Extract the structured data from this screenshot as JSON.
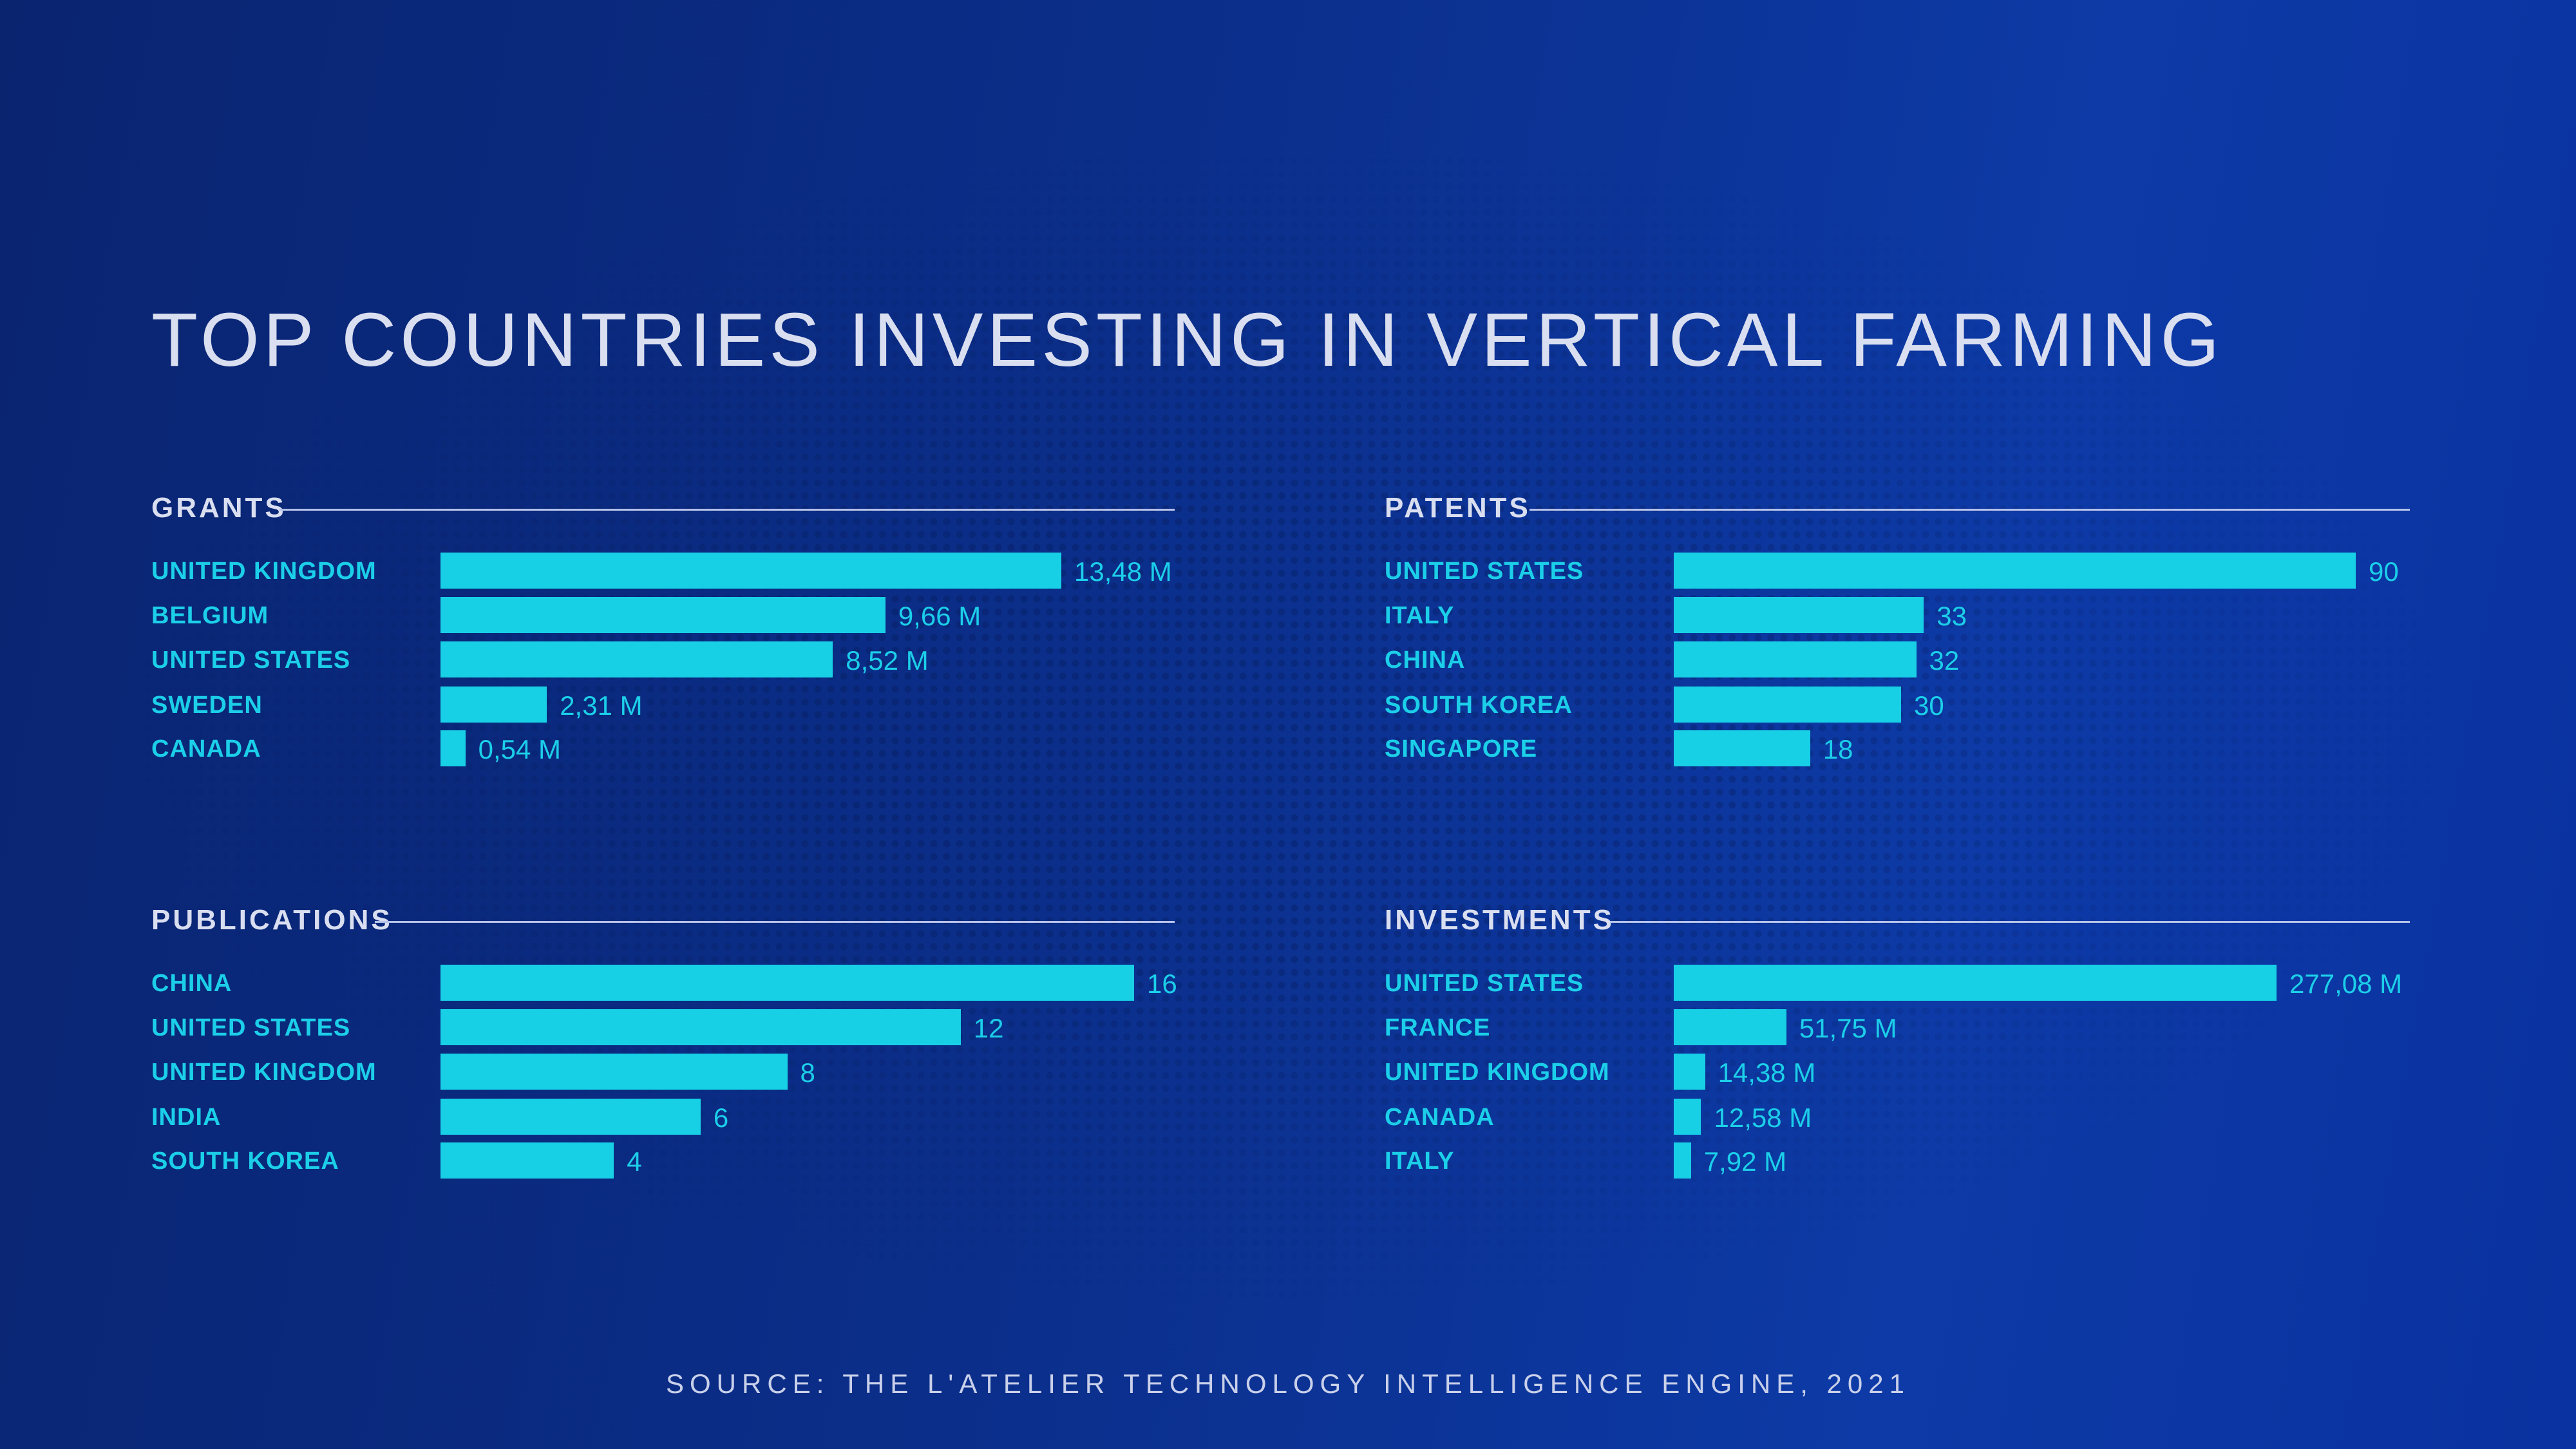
{
  "title": "TOP COUNTRIES INVESTING IN VERTICAL FARMING",
  "source": "SOURCE: THE L'ATELIER TECHNOLOGY INTELLIGENCE ENGINE, 2021",
  "colors": {
    "bar": "#17d0e6",
    "label": "#1ccfe9",
    "background": "#0b2f8c",
    "heading": "#d9def0"
  },
  "chart_data": [
    {
      "type": "bar",
      "orientation": "horizontal",
      "title": "GRANTS",
      "categories": [
        "UNITED KINGDOM",
        "BELGIUM",
        "UNITED STATES",
        "SWEDEN",
        "CANADA"
      ],
      "values": [
        13.48,
        9.66,
        8.52,
        2.31,
        0.54
      ],
      "labels": [
        "13,48 M",
        "9,66 M",
        "8,52 M",
        "2,31 M",
        "0,54 M"
      ]
    },
    {
      "type": "bar",
      "orientation": "horizontal",
      "title": "PATENTS",
      "categories": [
        "UNITED STATES",
        "ITALY",
        "CHINA",
        "SOUTH KOREA",
        "SINGAPORE"
      ],
      "values": [
        90,
        33,
        32,
        30,
        18
      ],
      "labels": [
        "90",
        "33",
        "32",
        "30",
        "18"
      ]
    },
    {
      "type": "bar",
      "orientation": "horizontal",
      "title": "PUBLICATIONS",
      "categories": [
        "CHINA",
        "UNITED STATES",
        "UNITED KINGDOM",
        "INDIA",
        "SOUTH KOREA"
      ],
      "values": [
        16,
        12,
        8,
        6,
        4
      ],
      "labels": [
        "16",
        "12",
        "8",
        "6",
        "4"
      ]
    },
    {
      "type": "bar",
      "orientation": "horizontal",
      "title": "INVESTMENTS",
      "categories": [
        "UNITED STATES",
        "FRANCE",
        "UNITED KINGDOM",
        "CANADA",
        "ITALY"
      ],
      "values": [
        277.08,
        51.75,
        14.38,
        12.58,
        7.92
      ],
      "labels": [
        "277,08 M",
        "51,75 M",
        "14,38 M",
        "12,58 M",
        "7,92 M"
      ]
    }
  ]
}
